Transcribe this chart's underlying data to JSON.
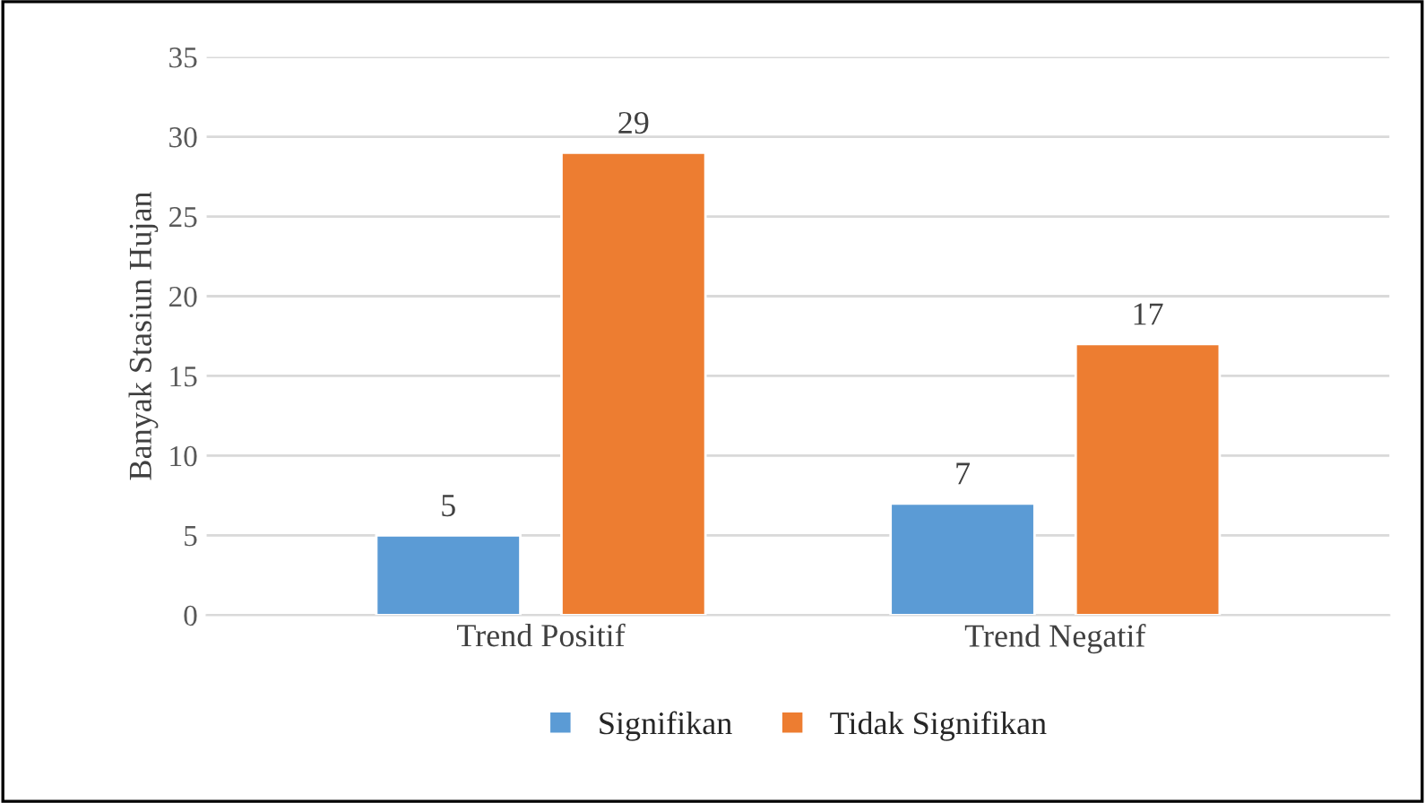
{
  "chart_data": {
    "type": "bar",
    "ylabel": "Banyak Stasiun Hujan",
    "categories": [
      "Trend Positif",
      "Trend Negatif"
    ],
    "series": [
      {
        "name": "Signifikan",
        "color": "#5b9bd5",
        "values": [
          5,
          7
        ]
      },
      {
        "name": "Tidak Signifikan",
        "color": "#ed7d31",
        "values": [
          29,
          17
        ]
      }
    ],
    "ylim": [
      0,
      35
    ],
    "yticks": [
      0,
      5,
      10,
      15,
      20,
      25,
      30,
      35
    ],
    "grid": "y",
    "legend": "bottom",
    "data_labels": true
  }
}
